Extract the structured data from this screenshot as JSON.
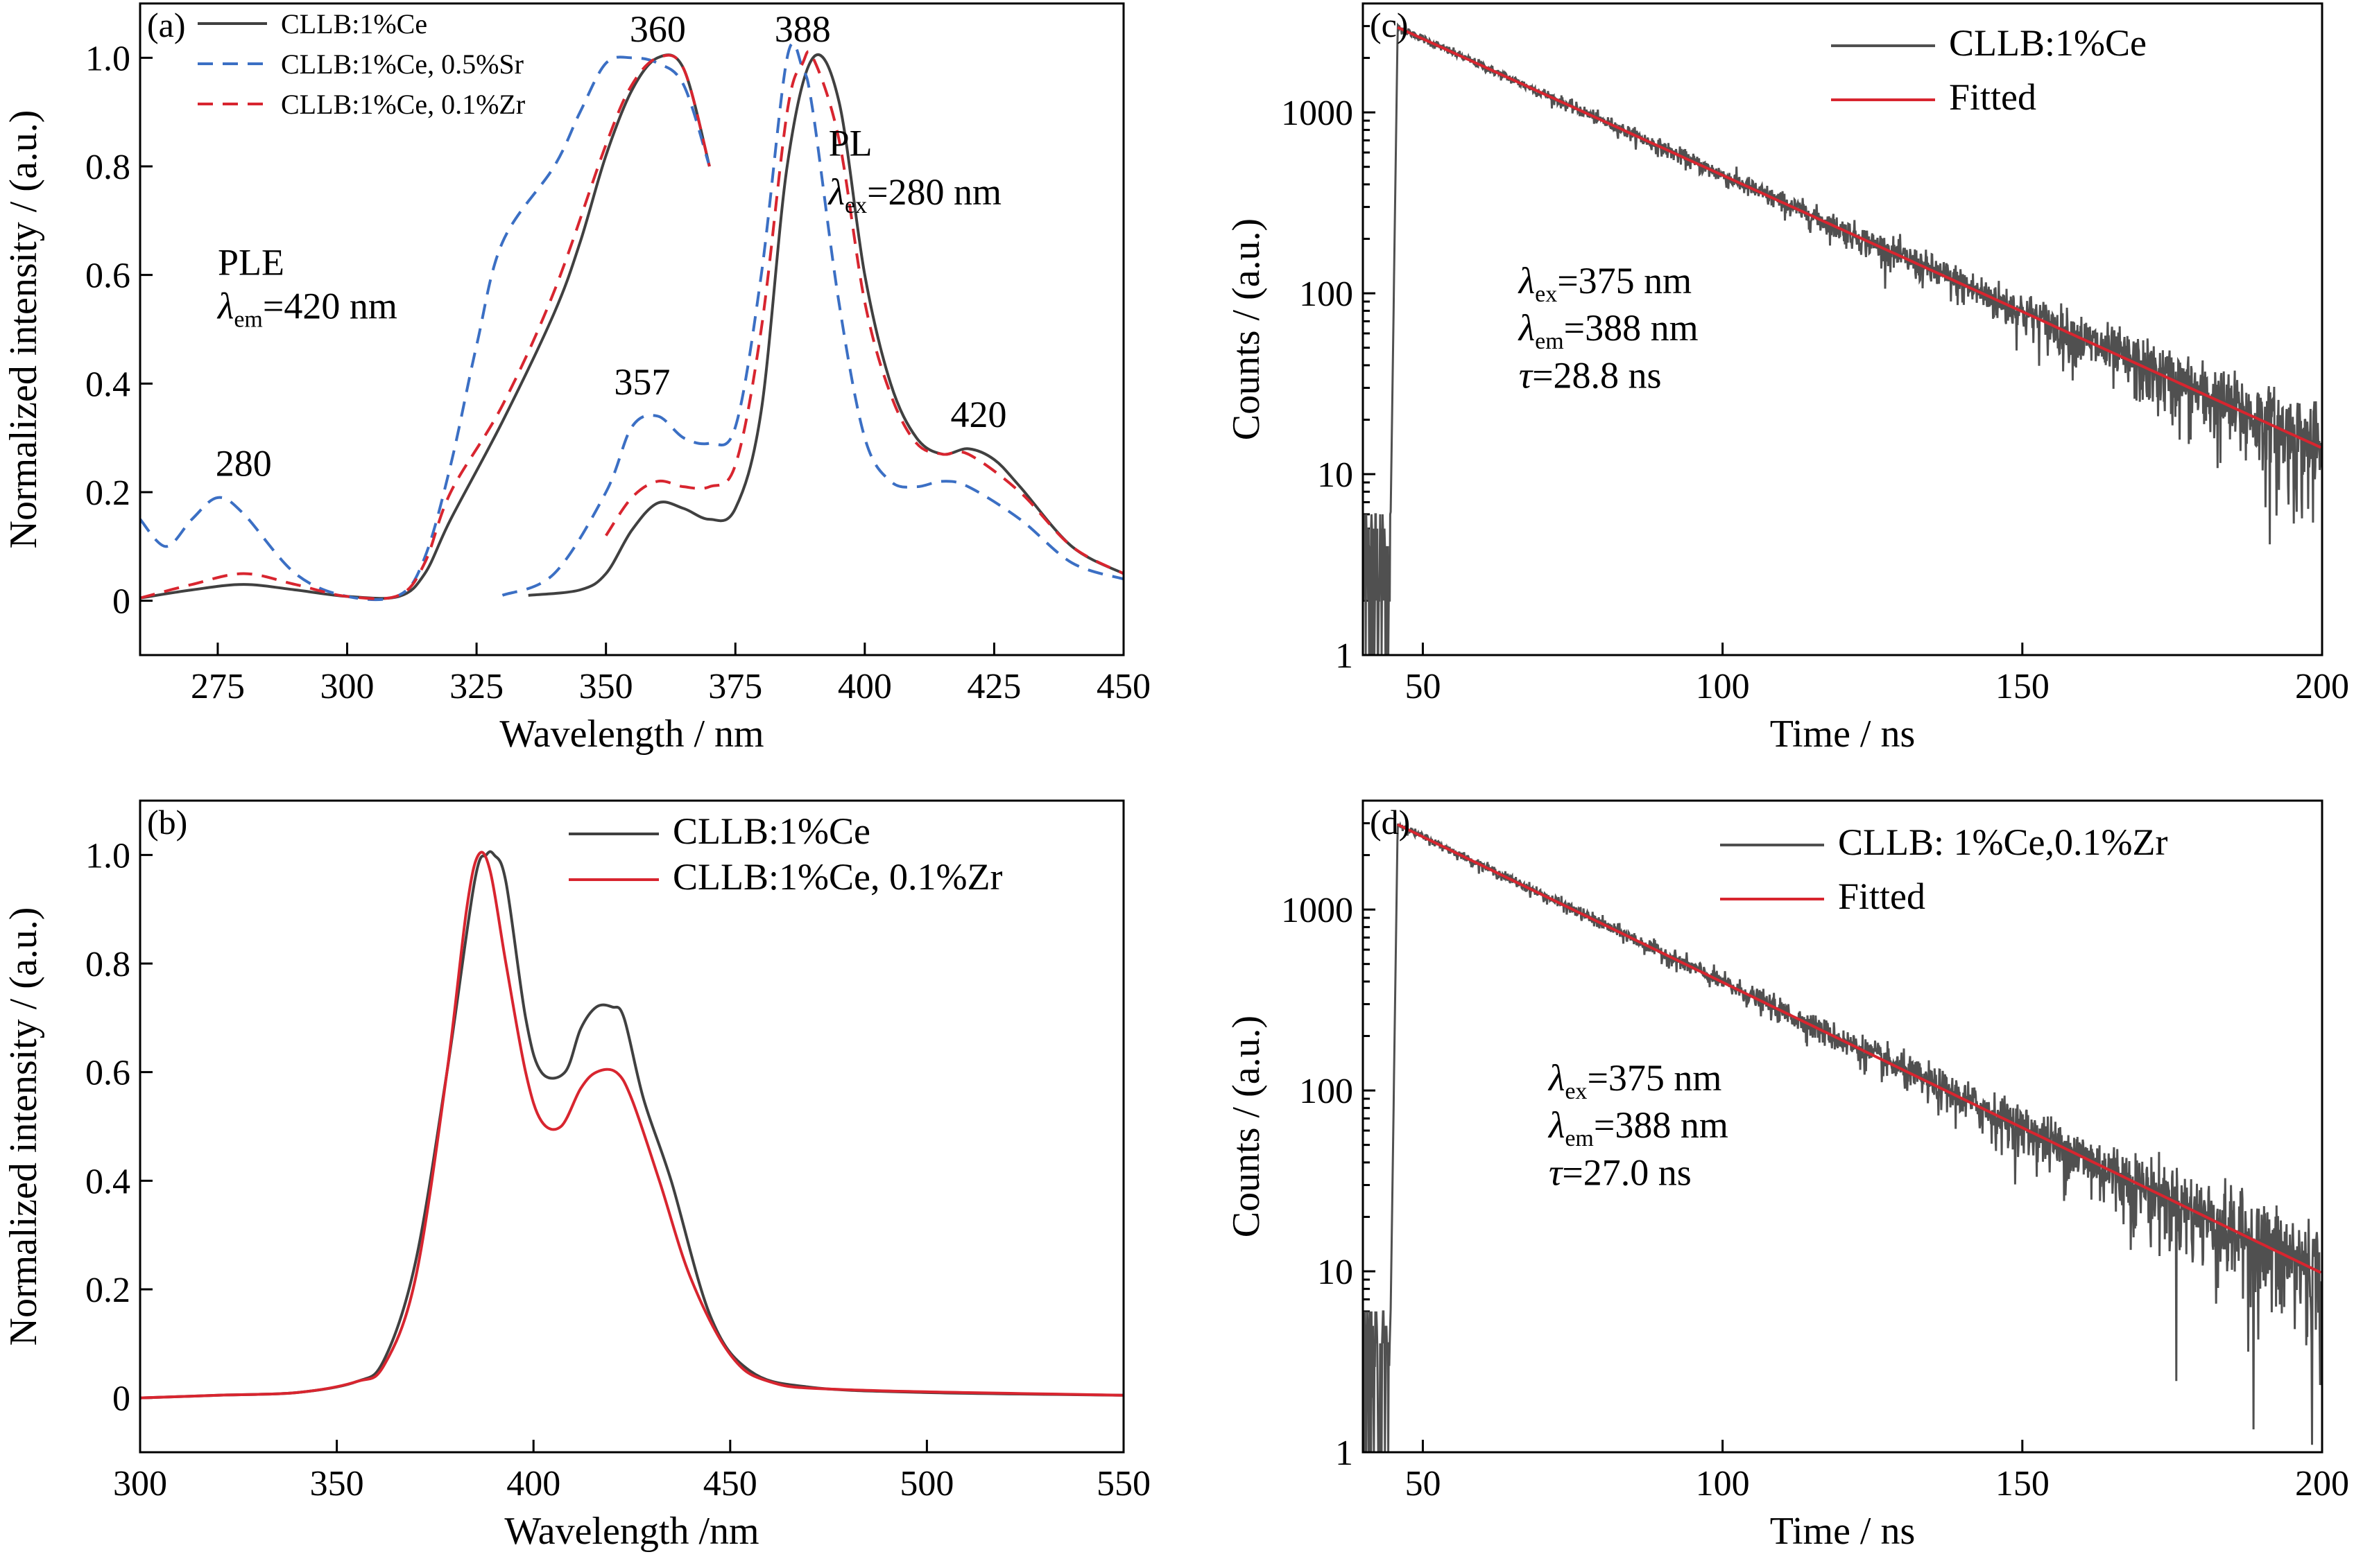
{
  "chart_data": [
    {
      "id": "a",
      "type": "line",
      "panel_label": "(a)",
      "xlabel": "Wavelength / nm",
      "ylabel": "Normalized intensity / (a.u.)",
      "xlim": [
        260,
        450
      ],
      "ylim": [
        -0.1,
        1.1
      ],
      "xticks": [
        275,
        300,
        325,
        350,
        375,
        400,
        425,
        450
      ],
      "yticks": [
        0,
        0.2,
        0.4,
        0.6,
        0.8,
        1.0
      ],
      "ytick_labels": [
        "0",
        "0.2",
        "0.4",
        "0.6",
        "0.8",
        "1.0"
      ],
      "legend": "top-left",
      "series": [
        {
          "name": "CLLB:1%Ce",
          "color": "#404040",
          "dash": "solid",
          "segments": [
            [
              [
                260,
                0.005
              ],
              [
                270,
                0.02
              ],
              [
                280,
                0.03
              ],
              [
                290,
                0.02
              ],
              [
                300,
                0.008
              ],
              [
                310,
                0.008
              ],
              [
                315,
                0.05
              ],
              [
                320,
                0.15
              ],
              [
                330,
                0.33
              ],
              [
                340,
                0.53
              ],
              [
                345,
                0.66
              ],
              [
                350,
                0.82
              ],
              [
                355,
                0.94
              ],
              [
                360,
                1.0
              ],
              [
                365,
                0.98
              ],
              [
                370,
                0.8
              ]
            ],
            [
              [
                335,
                0.01
              ],
              [
                345,
                0.02
              ],
              [
                350,
                0.05
              ],
              [
                355,
                0.13
              ],
              [
                360,
                0.18
              ],
              [
                365,
                0.17
              ],
              [
                370,
                0.15
              ],
              [
                375,
                0.17
              ],
              [
                380,
                0.35
              ],
              [
                385,
                0.8
              ],
              [
                390,
                1.0
              ],
              [
                395,
                0.92
              ],
              [
                400,
                0.6
              ],
              [
                405,
                0.4
              ],
              [
                410,
                0.3
              ],
              [
                415,
                0.27
              ],
              [
                420,
                0.28
              ],
              [
                425,
                0.26
              ],
              [
                430,
                0.21
              ],
              [
                440,
                0.1
              ],
              [
                450,
                0.05
              ]
            ]
          ]
        },
        {
          "name": "CLLB:1%Ce, 0.5%Sr",
          "color": "#3b6fc4",
          "dash": "dashed",
          "segments": [
            [
              [
                260,
                0.15
              ],
              [
                265,
                0.1
              ],
              [
                270,
                0.15
              ],
              [
                275,
                0.19
              ],
              [
                280,
                0.16
              ],
              [
                290,
                0.05
              ],
              [
                300,
                0.008
              ],
              [
                310,
                0.01
              ],
              [
                315,
                0.08
              ],
              [
                320,
                0.25
              ],
              [
                325,
                0.47
              ],
              [
                330,
                0.66
              ],
              [
                340,
                0.8
              ],
              [
                345,
                0.9
              ],
              [
                350,
                0.99
              ],
              [
                355,
                1.0
              ],
              [
                360,
                0.99
              ],
              [
                365,
                0.95
              ],
              [
                370,
                0.8
              ]
            ],
            [
              [
                330,
                0.01
              ],
              [
                340,
                0.05
              ],
              [
                350,
                0.2
              ],
              [
                355,
                0.32
              ],
              [
                360,
                0.34
              ],
              [
                365,
                0.3
              ],
              [
                370,
                0.29
              ],
              [
                375,
                0.32
              ],
              [
                380,
                0.6
              ],
              [
                385,
                1.0
              ],
              [
                388,
                0.98
              ],
              [
                390,
                0.9
              ],
              [
                395,
                0.55
              ],
              [
                400,
                0.3
              ],
              [
                405,
                0.22
              ],
              [
                410,
                0.21
              ],
              [
                415,
                0.22
              ],
              [
                420,
                0.21
              ],
              [
                430,
                0.15
              ],
              [
                440,
                0.07
              ],
              [
                450,
                0.04
              ]
            ]
          ]
        },
        {
          "name": "CLLB:1%Ce, 0.1%Zr",
          "color": "#d8252f",
          "dash": "dashed",
          "segments": [
            [
              [
                260,
                0.005
              ],
              [
                270,
                0.03
              ],
              [
                280,
                0.05
              ],
              [
                290,
                0.03
              ],
              [
                300,
                0.008
              ],
              [
                310,
                0.01
              ],
              [
                315,
                0.07
              ],
              [
                320,
                0.2
              ],
              [
                330,
                0.36
              ],
              [
                340,
                0.57
              ],
              [
                350,
                0.84
              ],
              [
                355,
                0.95
              ],
              [
                360,
                1.0
              ],
              [
                365,
                0.98
              ],
              [
                370,
                0.8
              ]
            ],
            [
              [
                350,
                0.12
              ],
              [
                355,
                0.19
              ],
              [
                360,
                0.22
              ],
              [
                365,
                0.21
              ],
              [
                370,
                0.21
              ],
              [
                375,
                0.25
              ],
              [
                380,
                0.5
              ],
              [
                385,
                0.9
              ],
              [
                388,
                0.99
              ],
              [
                390,
                1.0
              ],
              [
                395,
                0.85
              ],
              [
                400,
                0.55
              ],
              [
                405,
                0.38
              ],
              [
                410,
                0.29
              ],
              [
                415,
                0.27
              ],
              [
                420,
                0.27
              ],
              [
                430,
                0.2
              ],
              [
                440,
                0.1
              ],
              [
                450,
                0.05
              ]
            ]
          ]
        }
      ],
      "annotations": [
        {
          "text": "360",
          "x": 360,
          "y": 1.03
        },
        {
          "text": "388",
          "x": 388,
          "y": 1.03
        },
        {
          "text": "357",
          "x": 357,
          "y": 0.38
        },
        {
          "text": "420",
          "x": 422,
          "y": 0.32
        },
        {
          "text": "280",
          "x": 280,
          "y": 0.23
        },
        {
          "text": "PLE",
          "x": 275,
          "y": 0.6
        },
        {
          "text": "λem=420 nm",
          "x": 275,
          "y": 0.52
        },
        {
          "text": "PL",
          "x": 393,
          "y": 0.82
        },
        {
          "text": "λex=280 nm",
          "x": 393,
          "y": 0.73
        }
      ]
    },
    {
      "id": "b",
      "type": "line",
      "panel_label": "(b)",
      "xlabel": "Wavelength /nm",
      "ylabel": "Normalized intensity / (a.u.)",
      "xlim": [
        300,
        550
      ],
      "ylim": [
        -0.1,
        1.1
      ],
      "xticks": [
        300,
        350,
        400,
        450,
        500,
        550
      ],
      "yticks": [
        0,
        0.2,
        0.4,
        0.6,
        0.8,
        1.0
      ],
      "ytick_labels": [
        "0",
        "0.2",
        "0.4",
        "0.6",
        "0.8",
        "1.0"
      ],
      "legend": "top-right",
      "series": [
        {
          "name": "CLLB:1%Ce",
          "color": "#404040",
          "dash": "solid",
          "segments": [
            [
              [
                300,
                0.0
              ],
              [
                320,
                0.005
              ],
              [
                340,
                0.01
              ],
              [
                355,
                0.03
              ],
              [
                362,
                0.07
              ],
              [
                370,
                0.25
              ],
              [
                378,
                0.6
              ],
              [
                385,
                0.95
              ],
              [
                388,
                1.0
              ],
              [
                390,
                1.0
              ],
              [
                393,
                0.95
              ],
              [
                398,
                0.7
              ],
              [
                402,
                0.6
              ],
              [
                408,
                0.6
              ],
              [
                412,
                0.68
              ],
              [
                416,
                0.72
              ],
              [
                420,
                0.72
              ],
              [
                423,
                0.7
              ],
              [
                428,
                0.55
              ],
              [
                435,
                0.4
              ],
              [
                445,
                0.15
              ],
              [
                455,
                0.05
              ],
              [
                470,
                0.02
              ],
              [
                500,
                0.01
              ],
              [
                550,
                0.005
              ]
            ]
          ]
        },
        {
          "name": "CLLB:1%Ce, 0.1%Zr",
          "color": "#d8252f",
          "dash": "solid",
          "segments": [
            [
              [
                300,
                0.0
              ],
              [
                320,
                0.005
              ],
              [
                340,
                0.01
              ],
              [
                355,
                0.03
              ],
              [
                362,
                0.06
              ],
              [
                370,
                0.22
              ],
              [
                378,
                0.6
              ],
              [
                383,
                0.9
              ],
              [
                386,
                1.0
              ],
              [
                389,
                0.97
              ],
              [
                393,
                0.8
              ],
              [
                398,
                0.6
              ],
              [
                402,
                0.51
              ],
              [
                407,
                0.5
              ],
              [
                412,
                0.57
              ],
              [
                416,
                0.6
              ],
              [
                421,
                0.6
              ],
              [
                425,
                0.55
              ],
              [
                432,
                0.4
              ],
              [
                440,
                0.22
              ],
              [
                450,
                0.08
              ],
              [
                460,
                0.03
              ],
              [
                480,
                0.015
              ],
              [
                550,
                0.005
              ]
            ]
          ]
        }
      ]
    },
    {
      "id": "c",
      "type": "line",
      "panel_label": "(c)",
      "xlabel": "Time / ns",
      "ylabel": "Counts / (a.u.)",
      "xlim": [
        40,
        200
      ],
      "ylim": [
        1,
        4000
      ],
      "yscale": "log",
      "xticks": [
        50,
        100,
        150,
        200
      ],
      "yticks": [
        1,
        10,
        100,
        1000
      ],
      "legend": "top-right",
      "decay": {
        "t_rise": 45.8,
        "amplitude": 2950,
        "tau": 28.8
      },
      "series": [
        {
          "name": "CLLB:1%Ce",
          "color": "#505050",
          "dash": "solid",
          "kind": "noisy-decay"
        },
        {
          "name": "Fitted",
          "color": "#d8252f",
          "dash": "solid",
          "kind": "fit"
        }
      ],
      "annotations": [
        {
          "text": "λex=375 nm",
          "x": 66,
          "y": 100
        },
        {
          "text": "λem=388 nm",
          "x": 66,
          "y": 55
        },
        {
          "text": "τ=28.8 ns",
          "x": 66,
          "y": 30
        }
      ]
    },
    {
      "id": "d",
      "type": "line",
      "panel_label": "(d)",
      "xlabel": "Time / ns",
      "ylabel": "Counts / (a.u.)",
      "xlim": [
        40,
        200
      ],
      "ylim": [
        1,
        4000
      ],
      "yscale": "log",
      "xticks": [
        50,
        100,
        150,
        200
      ],
      "yticks": [
        1,
        10,
        100,
        1000
      ],
      "legend": "top-right",
      "decay": {
        "t_rise": 45.8,
        "amplitude": 2950,
        "tau": 27.0
      },
      "series": [
        {
          "name": "CLLB: 1%Ce,0.1%Zr",
          "color": "#505050",
          "dash": "solid",
          "kind": "noisy-decay"
        },
        {
          "name": "Fitted",
          "color": "#d8252f",
          "dash": "solid",
          "kind": "fit"
        }
      ],
      "annotations": [
        {
          "text": "λex=375 nm",
          "x": 71,
          "y": 100
        },
        {
          "text": "λem=388 nm",
          "x": 71,
          "y": 55
        },
        {
          "text": "τ=27.0 ns",
          "x": 71,
          "y": 30
        }
      ]
    }
  ]
}
